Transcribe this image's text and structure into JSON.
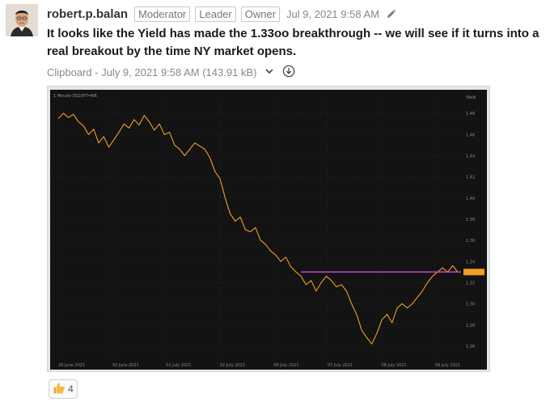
{
  "post": {
    "author": "robert.p.balan",
    "roles": [
      "Moderator",
      "Leader",
      "Owner"
    ],
    "timestamp": "Jul 9, 2021 9:58 AM",
    "message": "It looks like the Yield has made the 1.33oo breakthrough -- we will see if it turns into a real breakout by the time NY market opens.",
    "edit_icon": "pencil-icon"
  },
  "attachment": {
    "meta": "Clipboard - July 9, 2021 9:58 AM (143.91 kB)",
    "expand_icon": "chevron-down-icon",
    "download_icon": "download-circle-icon"
  },
  "reaction": {
    "icon": "thumbs-up-icon",
    "count": "4"
  },
  "colors": {
    "chart_bg": "#131313",
    "price_line": "#f0a020",
    "resistance_line": "#c040c8",
    "grid": "#3a3a3a"
  },
  "chart_data": {
    "type": "line",
    "title": "1 Minute US10YT=RR",
    "x_labels": [
      "29 June 2021",
      "30 June 2021",
      "01 July 2021",
      "02 July 2021",
      "06 July 2021",
      "07 July 2021",
      "08 July 2021",
      "09 July 2021"
    ],
    "ylabel": "Yield",
    "ylim": [
      1.25,
      1.49
    ],
    "y_ticks": [
      1.26,
      1.28,
      1.3,
      1.32,
      1.34,
      1.36,
      1.38,
      1.4,
      1.42,
      1.44,
      1.46,
      1.48
    ],
    "series": [
      {
        "values": [
          1.475,
          1.48,
          1.476,
          1.479,
          1.472,
          1.468,
          1.46,
          1.465,
          1.452,
          1.458,
          1.448,
          1.455,
          1.462,
          1.47,
          1.466,
          1.474,
          1.469,
          1.478,
          1.472,
          1.464,
          1.47,
          1.46,
          1.462,
          1.45,
          1.446,
          1.44,
          1.446,
          1.452,
          1.449,
          1.446,
          1.438,
          1.425,
          1.418,
          1.4,
          1.385,
          1.378,
          1.382,
          1.37,
          1.368,
          1.372,
          1.36,
          1.356,
          1.35,
          1.346,
          1.34,
          1.344,
          1.335,
          1.33,
          1.326,
          1.318,
          1.322,
          1.312,
          1.32,
          1.326,
          1.322,
          1.316,
          1.318,
          1.312,
          1.3,
          1.29,
          1.275,
          1.268,
          1.262,
          1.272,
          1.285,
          1.29,
          1.282,
          1.296,
          1.3,
          1.296,
          1.3,
          1.306,
          1.312,
          1.32,
          1.326,
          1.33,
          1.334,
          1.33,
          1.336,
          1.33
        ]
      }
    ],
    "resistance_level": 1.33,
    "resistance_start_index": 48,
    "last_value": 1.33
  }
}
